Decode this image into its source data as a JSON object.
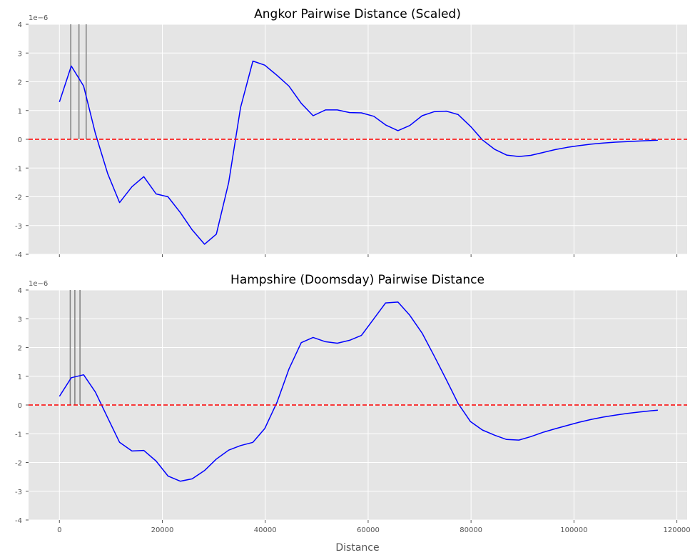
{
  "chart_data": [
    {
      "type": "line",
      "title": "Angkor Pairwise Distance (Scaled)",
      "xlabel": "",
      "ylabel": "",
      "y_offset_label": "1e−6",
      "xlim": [
        -6000,
        122000
      ],
      "ylim": [
        -4,
        4
      ],
      "y_scale_note": "values ×1e-6",
      "xticks": [
        0,
        20000,
        40000,
        60000,
        80000,
        100000,
        120000
      ],
      "xtick_labels_shown": false,
      "yticks": [
        -4,
        -3,
        -2,
        -1,
        0,
        1,
        2,
        3,
        4
      ],
      "grid": true,
      "reference_line": {
        "y": 0,
        "color": "#ff0000",
        "style": "dashed"
      },
      "vertical_markers": {
        "x": [
          2200,
          3800,
          5200
        ],
        "color": "#808080"
      },
      "series": [
        {
          "color": "#0000ff",
          "x": [
            0,
            2300,
            4700,
            7000,
            9400,
            11700,
            14100,
            16400,
            18800,
            21100,
            23500,
            25800,
            28200,
            30500,
            32900,
            35200,
            37600,
            39900,
            42300,
            44600,
            47000,
            49300,
            51700,
            54000,
            56400,
            58700,
            61100,
            63400,
            65800,
            68100,
            70500,
            72800,
            75200,
            77500,
            79900,
            82200,
            84600,
            86900,
            89300,
            91600,
            94000,
            96300,
            98700,
            101000,
            103400,
            105700,
            108100,
            110400,
            112800,
            115100,
            116300
          ],
          "y": [
            1.3,
            2.55,
            1.85,
            0.2,
            -1.2,
            -2.2,
            -1.65,
            -1.3,
            -1.9,
            -2.0,
            -2.55,
            -3.15,
            -3.65,
            -3.3,
            -1.5,
            1.1,
            2.72,
            2.58,
            2.22,
            1.85,
            1.25,
            0.82,
            1.02,
            1.02,
            0.93,
            0.92,
            0.8,
            0.5,
            0.3,
            0.48,
            0.82,
            0.96,
            0.98,
            0.86,
            0.45,
            -0.02,
            -0.35,
            -0.55,
            -0.6,
            -0.56,
            -0.46,
            -0.36,
            -0.28,
            -0.22,
            -0.17,
            -0.13,
            -0.1,
            -0.08,
            -0.06,
            -0.04,
            -0.03
          ]
        }
      ]
    },
    {
      "type": "line",
      "title": "Hampshire (Doomsday) Pairwise Distance",
      "xlabel": "Distance",
      "ylabel": "",
      "y_offset_label": "1e−6",
      "xlim": [
        -6000,
        122000
      ],
      "ylim": [
        -4,
        4
      ],
      "y_scale_note": "values ×1e-6",
      "xticks": [
        0,
        20000,
        40000,
        60000,
        80000,
        100000,
        120000
      ],
      "xtick_labels": [
        "0",
        "20000",
        "40000",
        "60000",
        "80000",
        "100000",
        "120000"
      ],
      "xtick_labels_shown": true,
      "yticks": [
        -4,
        -3,
        -2,
        -1,
        0,
        1,
        2,
        3,
        4
      ],
      "grid": true,
      "reference_line": {
        "y": 0,
        "color": "#ff0000",
        "style": "dashed"
      },
      "vertical_markers": {
        "x": [
          2100,
          3000,
          4000
        ],
        "color": "#808080"
      },
      "series": [
        {
          "color": "#0000ff",
          "x": [
            0,
            2300,
            4700,
            7000,
            9400,
            11700,
            14100,
            16400,
            18800,
            21100,
            23500,
            25800,
            28200,
            30500,
            32900,
            35200,
            37600,
            39900,
            42300,
            44600,
            47000,
            49300,
            51700,
            54000,
            56400,
            58700,
            61100,
            63400,
            65800,
            68100,
            70500,
            72800,
            75200,
            77500,
            79900,
            82200,
            84600,
            86900,
            89300,
            91600,
            94000,
            96300,
            98700,
            101000,
            103400,
            105700,
            108100,
            110400,
            112800,
            115100,
            116300
          ],
          "y": [
            0.3,
            0.95,
            1.05,
            0.45,
            -0.45,
            -1.3,
            -1.6,
            -1.58,
            -1.95,
            -2.47,
            -2.65,
            -2.57,
            -2.28,
            -1.88,
            -1.57,
            -1.41,
            -1.3,
            -0.82,
            0.1,
            1.25,
            2.17,
            2.35,
            2.2,
            2.15,
            2.25,
            2.42,
            3.0,
            3.55,
            3.58,
            3.12,
            2.5,
            1.72,
            0.88,
            0.05,
            -0.58,
            -0.87,
            -1.05,
            -1.2,
            -1.22,
            -1.1,
            -0.95,
            -0.83,
            -0.71,
            -0.6,
            -0.5,
            -0.42,
            -0.35,
            -0.29,
            -0.24,
            -0.2,
            -0.18
          ]
        }
      ]
    }
  ]
}
